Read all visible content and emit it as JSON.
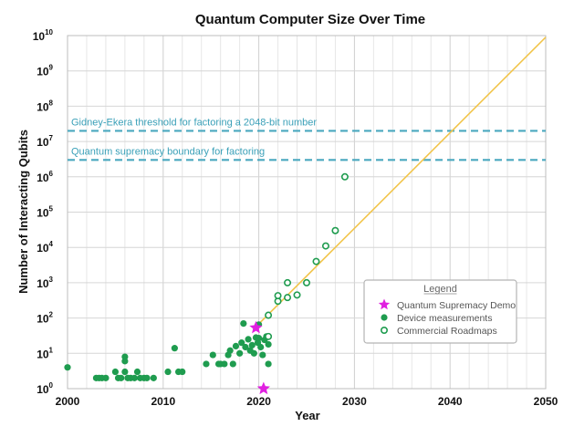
{
  "chart_data": {
    "type": "scatter",
    "title": "Quantum Computer Size Over Time",
    "xlabel": "Year",
    "ylabel": "Number of Interacting Qubits",
    "xlim": [
      2000,
      2050
    ],
    "ylim_log10": [
      0,
      10
    ],
    "yscale": "log",
    "grid": true,
    "x_ticks": [
      "2000",
      "2010",
      "2020",
      "2030",
      "2040",
      "2050"
    ],
    "y_ticks": [
      {
        "base": "10",
        "exp": "0"
      },
      {
        "base": "10",
        "exp": "1"
      },
      {
        "base": "10",
        "exp": "2"
      },
      {
        "base": "10",
        "exp": "3"
      },
      {
        "base": "10",
        "exp": "4"
      },
      {
        "base": "10",
        "exp": "5"
      },
      {
        "base": "10",
        "exp": "6"
      },
      {
        "base": "10",
        "exp": "7"
      },
      {
        "base": "10",
        "exp": "8"
      },
      {
        "base": "10",
        "exp": "9"
      },
      {
        "base": "10",
        "exp": "10"
      }
    ],
    "reference_lines": [
      {
        "label": "Gidney-Ekera threshold for factoring a 2048-bit number",
        "y": 20000000,
        "color": "#4aa8bf"
      },
      {
        "label": "Quantum supremacy boundary for factoring",
        "y": 3000000,
        "color": "#4aa8bf"
      }
    ],
    "trend_line": {
      "from": [
        2019.5,
        50
      ],
      "to": [
        2050,
        9000000000
      ],
      "color": "#f2c54b"
    },
    "legend": {
      "title": "Legend",
      "position": "right",
      "entries": [
        "Quantum Supremacy Demo",
        "Device measurements",
        "Commercial Roadmaps"
      ]
    },
    "series": [
      {
        "name": "Device measurements",
        "color": "#1f9c4f",
        "points": [
          [
            2000,
            4
          ],
          [
            2003,
            2
          ],
          [
            2003.3,
            2
          ],
          [
            2003.6,
            2
          ],
          [
            2004,
            2
          ],
          [
            2005,
            3
          ],
          [
            2005.3,
            2
          ],
          [
            2005.6,
            2
          ],
          [
            2006,
            8
          ],
          [
            2006,
            6
          ],
          [
            2006,
            3
          ],
          [
            2006.3,
            2
          ],
          [
            2006.6,
            2
          ],
          [
            2007,
            2
          ],
          [
            2007.3,
            3
          ],
          [
            2007.6,
            2
          ],
          [
            2008,
            2
          ],
          [
            2008.3,
            2
          ],
          [
            2009,
            2
          ],
          [
            2010.5,
            3
          ],
          [
            2011.2,
            14
          ],
          [
            2011.6,
            3
          ],
          [
            2012,
            3
          ],
          [
            2014.5,
            5
          ],
          [
            2015.2,
            9
          ],
          [
            2015.8,
            5
          ],
          [
            2016,
            5
          ],
          [
            2016.4,
            5
          ],
          [
            2016.8,
            9
          ],
          [
            2017,
            12
          ],
          [
            2017.3,
            5
          ],
          [
            2017.6,
            16
          ],
          [
            2018,
            10
          ],
          [
            2018.2,
            20
          ],
          [
            2018.4,
            70
          ],
          [
            2018.6,
            15
          ],
          [
            2018.9,
            25
          ],
          [
            2019.1,
            12
          ],
          [
            2019.3,
            17
          ],
          [
            2019.5,
            10
          ],
          [
            2019.7,
            28
          ],
          [
            2019.9,
            20
          ],
          [
            2020,
            65
          ],
          [
            2020,
            27
          ],
          [
            2020.2,
            15
          ],
          [
            2020.4,
            9
          ],
          [
            2020.6,
            24
          ],
          [
            2020.8,
            30
          ],
          [
            2021,
            5
          ],
          [
            2021,
            18
          ]
        ]
      },
      {
        "name": "Commercial Roadmaps",
        "color": "#1f9c4f",
        "points": [
          [
            2021,
            30
          ],
          [
            2021,
            120
          ],
          [
            2022,
            300
          ],
          [
            2022,
            430
          ],
          [
            2023,
            1000
          ],
          [
            2023,
            380
          ],
          [
            2024,
            450
          ],
          [
            2025,
            1000
          ],
          [
            2026,
            4000
          ],
          [
            2027,
            11000
          ],
          [
            2028,
            30000
          ],
          [
            2029,
            1000000
          ]
        ]
      },
      {
        "name": "Quantum Supremacy Demo",
        "color": "#e020e0",
        "points": [
          [
            2019.7,
            53
          ],
          [
            2020.5,
            1
          ]
        ]
      }
    ]
  }
}
